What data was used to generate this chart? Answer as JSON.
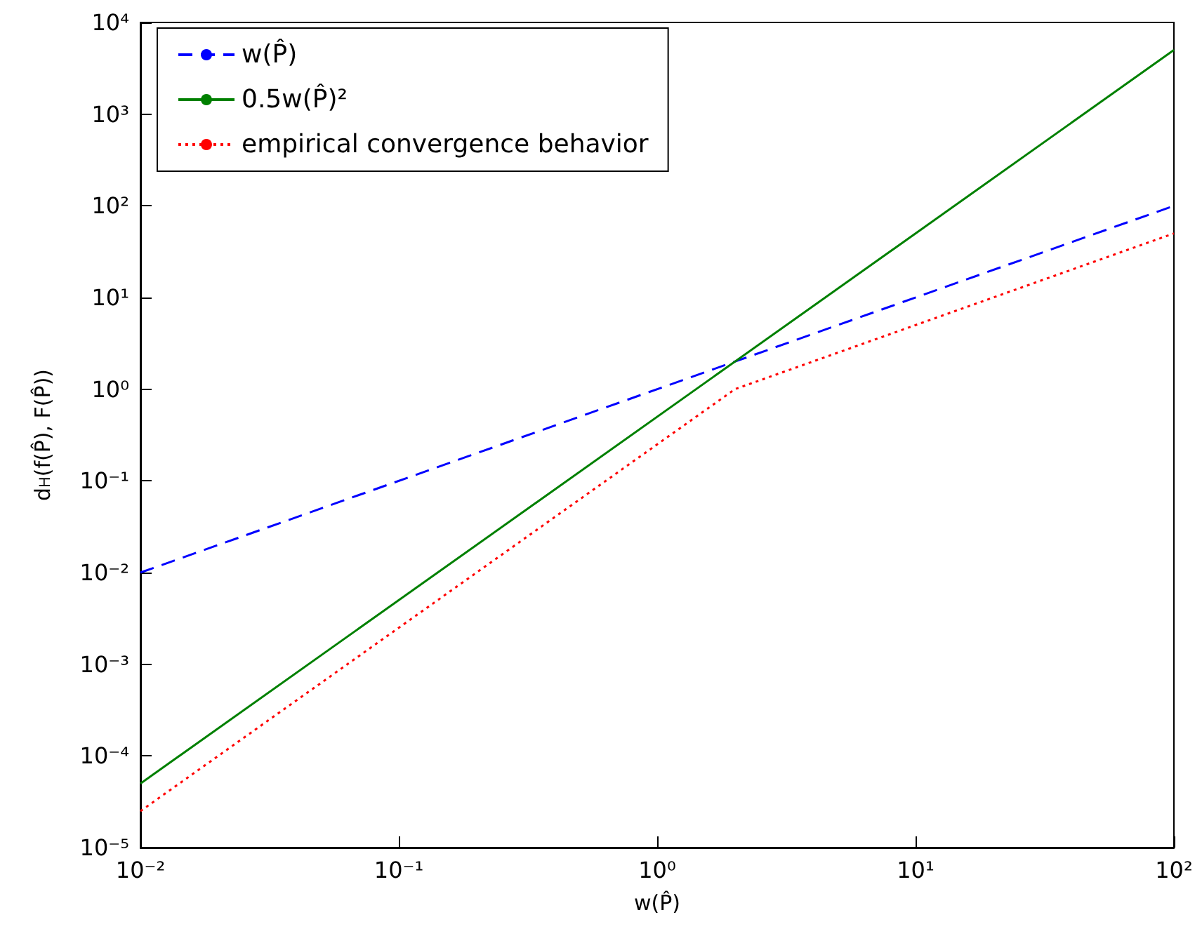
{
  "chart_data": {
    "type": "line",
    "xlabel": "w(P̂)",
    "ylabel": "d$_{H}$(f(P̂), F(P̂))",
    "log": "xy",
    "grid": false,
    "legend": "top left",
    "marker": "none",
    "xlim": [
      0.01,
      100
    ],
    "xticks": [
      {
        "value": 0.01,
        "label": "10⁻²"
      },
      {
        "value": 0.1,
        "label": "10⁻¹"
      },
      {
        "value": 1,
        "label": "10⁰"
      },
      {
        "value": 10,
        "label": "10¹"
      },
      {
        "value": 100,
        "label": "10²"
      }
    ],
    "ylim": [
      1e-05,
      10000
    ],
    "yticks": [
      {
        "value": 1e-05,
        "label": "10⁻⁵"
      },
      {
        "value": 0.0001,
        "label": "10⁻⁴"
      },
      {
        "value": 0.001,
        "label": "10⁻³"
      },
      {
        "value": 0.01,
        "label": "10⁻²"
      },
      {
        "value": 0.1,
        "label": "10⁻¹"
      },
      {
        "value": 1,
        "label": "10⁰"
      },
      {
        "value": 10,
        "label": "10¹"
      },
      {
        "value": 100,
        "label": "10²"
      },
      {
        "value": 1000,
        "label": "10³"
      },
      {
        "value": 10000,
        "label": "10⁴"
      }
    ],
    "series": [
      {
        "name": "w(P̂)",
        "color": "#0000ff",
        "line_style": "dashed",
        "x": [
          0.01,
          100
        ],
        "values": [
          0.01,
          100
        ]
      },
      {
        "name": "0.5w(P̂)²",
        "color": "#008000",
        "line_style": "solid",
        "x": [
          0.01,
          100
        ],
        "values": [
          5e-05,
          5000
        ]
      },
      {
        "name": "empirical convergence behavior",
        "color": "#ff0000",
        "line_style": "dotted",
        "x": [
          0.01,
          2,
          100
        ],
        "values": [
          2.5e-05,
          1,
          50
        ]
      }
    ]
  }
}
